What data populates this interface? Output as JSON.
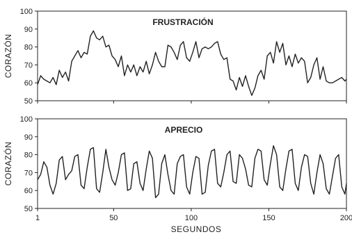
{
  "x_axis": {
    "label": "SEGUNDOS",
    "ticks": [
      1,
      50,
      100,
      150,
      200
    ],
    "tick_labels": [
      "1",
      "50",
      "100",
      "150",
      "200"
    ]
  },
  "chart_data": [
    {
      "type": "line",
      "title": "FRUSTRACIÓN",
      "xlabel": "",
      "ylabel": "CORAZÓN",
      "xlim": [
        1,
        200
      ],
      "ylim": [
        50,
        100
      ],
      "yticks": [
        50,
        60,
        70,
        80,
        90,
        100
      ],
      "ytick_labels": [
        "50",
        "60",
        "70",
        "80",
        "90",
        "100"
      ],
      "grid": false,
      "series_color": "#222222",
      "x": [
        1,
        3,
        5,
        7,
        9,
        11,
        13,
        15,
        17,
        19,
        21,
        23,
        25,
        27,
        29,
        31,
        33,
        35,
        37,
        39,
        41,
        43,
        45,
        47,
        49,
        51,
        53,
        55,
        57,
        59,
        61,
        63,
        65,
        67,
        69,
        71,
        73,
        75,
        77,
        79,
        81,
        83,
        85,
        87,
        89,
        91,
        93,
        95,
        97,
        99,
        101,
        103,
        105,
        107,
        109,
        111,
        113,
        115,
        117,
        119,
        121,
        123,
        125,
        127,
        129,
        131,
        133,
        135,
        137,
        139,
        141,
        143,
        145,
        147,
        149,
        151,
        153,
        155,
        157,
        159,
        161,
        163,
        165,
        167,
        169,
        171,
        173,
        175,
        177,
        179,
        181,
        183,
        185,
        187,
        189,
        191,
        193,
        195,
        197,
        199,
        200
      ],
      "y": [
        59,
        64,
        62,
        61,
        60,
        63,
        59,
        67,
        63,
        66,
        61,
        72,
        75,
        78,
        74,
        77,
        76,
        86,
        89,
        85,
        84,
        86,
        80,
        81,
        75,
        73,
        69,
        75,
        64,
        70,
        66,
        70,
        64,
        69,
        66,
        72,
        65,
        70,
        77,
        72,
        69,
        69,
        81,
        80,
        77,
        73,
        81,
        83,
        74,
        72,
        77,
        83,
        74,
        79,
        80,
        79,
        80,
        82,
        83,
        76,
        73,
        74,
        62,
        61,
        56,
        63,
        58,
        64,
        58,
        53,
        57,
        64,
        67,
        62,
        75,
        77,
        71,
        83,
        77,
        82,
        70,
        75,
        69,
        76,
        71,
        74,
        72,
        60,
        63,
        70,
        74,
        62,
        69,
        61,
        60,
        60,
        61,
        62,
        63,
        61,
        62
      ]
    },
    {
      "type": "line",
      "title": "APRECIO",
      "xlabel": "",
      "ylabel": "CORAZÓN",
      "xlim": [
        1,
        200
      ],
      "ylim": [
        50,
        100
      ],
      "yticks": [
        50,
        60,
        70,
        80,
        90,
        100
      ],
      "ytick_labels": [
        "50",
        "60",
        "70",
        "80",
        "90",
        "100"
      ],
      "grid": false,
      "series_color": "#222222",
      "x": [
        1,
        3,
        5,
        7,
        9,
        11,
        13,
        15,
        17,
        19,
        21,
        23,
        25,
        27,
        29,
        31,
        33,
        35,
        37,
        39,
        41,
        43,
        45,
        47,
        49,
        51,
        53,
        55,
        57,
        59,
        61,
        63,
        65,
        67,
        69,
        71,
        73,
        75,
        77,
        79,
        81,
        83,
        85,
        87,
        89,
        91,
        93,
        95,
        97,
        99,
        101,
        103,
        105,
        107,
        109,
        111,
        113,
        115,
        117,
        119,
        121,
        123,
        125,
        127,
        129,
        131,
        133,
        135,
        137,
        139,
        141,
        143,
        145,
        147,
        149,
        151,
        153,
        155,
        157,
        159,
        161,
        163,
        165,
        167,
        169,
        171,
        173,
        175,
        177,
        179,
        181,
        183,
        185,
        187,
        189,
        191,
        193,
        195,
        197,
        199,
        200
      ],
      "y": [
        66,
        69,
        76,
        73,
        63,
        58,
        64,
        77,
        79,
        66,
        69,
        71,
        79,
        80,
        63,
        61,
        73,
        83,
        84,
        61,
        59,
        70,
        83,
        73,
        66,
        63,
        70,
        80,
        81,
        60,
        61,
        75,
        76,
        64,
        60,
        72,
        82,
        78,
        56,
        58,
        75,
        80,
        69,
        60,
        58,
        75,
        79,
        80,
        62,
        58,
        70,
        79,
        78,
        58,
        59,
        74,
        82,
        83,
        64,
        62,
        70,
        80,
        82,
        65,
        64,
        80,
        78,
        72,
        63,
        62,
        78,
        83,
        82,
        66,
        63,
        75,
        85,
        80,
        62,
        60,
        72,
        82,
        83,
        64,
        60,
        73,
        80,
        79,
        64,
        58,
        70,
        80,
        75,
        61,
        58,
        68,
        78,
        80,
        62,
        58,
        64
      ]
    }
  ]
}
